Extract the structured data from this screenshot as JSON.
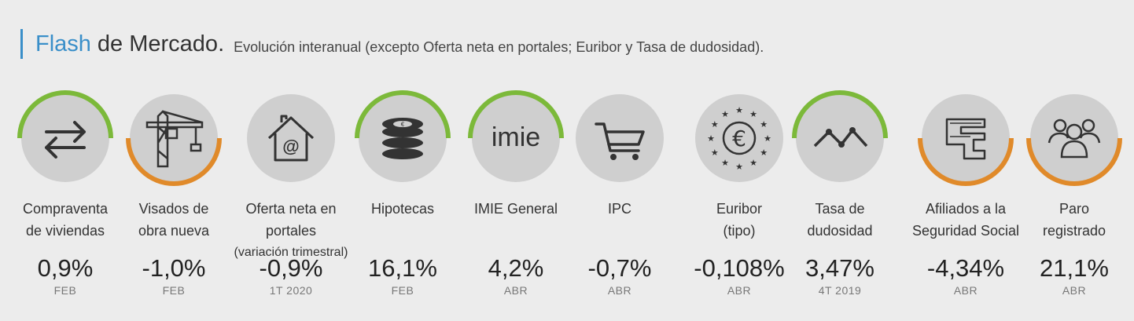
{
  "header": {
    "title_flash": "Flash",
    "title_rest": "de Mercado.",
    "subtitle": "Evolución interanual (excepto Oferta neta en portales; Euribor y Tasa de dudosidad)."
  },
  "colors": {
    "accent": "#3a8fc9",
    "up": "#7cb93a",
    "down": "#e08a2a",
    "circle": "#cfcfcf"
  },
  "cards": [
    {
      "icon": "transfer-arrows-icon",
      "arc": "up",
      "label1": "Compraventa",
      "label2": "de viviendas",
      "value": "0,9%",
      "period": "FEB"
    },
    {
      "icon": "crane-icon",
      "arc": "down",
      "label1": "Visados de",
      "label2": "obra nueva",
      "value": "-1,0%",
      "period": "FEB"
    },
    {
      "icon": "house-at-icon",
      "arc": "none",
      "label1": "Oferta neta en portales",
      "label2": "(variación trimestral)",
      "value": "-0,9%",
      "period": "1T 2020"
    },
    {
      "icon": "coins-euro-icon",
      "arc": "up",
      "label1": "Hipotecas",
      "label2": "",
      "value": "16,1%",
      "period": "FEB"
    },
    {
      "icon": "imie-logo-icon",
      "arc": "up",
      "label1": "IMIE General",
      "label2": "",
      "value": "4,2%",
      "period": "ABR",
      "logo_text": "imie"
    },
    {
      "icon": "shopping-cart-icon",
      "arc": "none",
      "label1": "IPC",
      "label2": "",
      "value": "-0,7%",
      "period": "ABR"
    },
    {
      "icon": "euro-stars-icon",
      "arc": "none",
      "label1": "Euribor",
      "label2": "(tipo)",
      "value": "-0,108%",
      "period": "ABR",
      "logo_text": "€"
    },
    {
      "icon": "trend-line-icon",
      "arc": "up",
      "label1": "Tasa de",
      "label2": "dudosidad",
      "value": "3,47%",
      "period": "4T 2019"
    },
    {
      "icon": "social-security-icon",
      "arc": "down",
      "label1": "Afiliados a la",
      "label2": "Seguridad Social",
      "value": "-4,34%",
      "period": "ABR"
    },
    {
      "icon": "people-group-icon",
      "arc": "down",
      "label1": "Paro",
      "label2": "registrado",
      "value": "21,1%",
      "period": "ABR"
    }
  ]
}
